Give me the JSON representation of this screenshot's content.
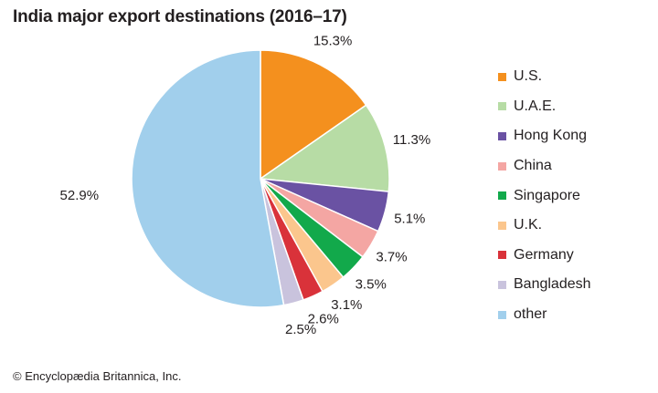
{
  "credit": "© Encyclopædia Britannica, Inc.",
  "chart_data": {
    "type": "pie",
    "title": "India major export destinations (2016–17)",
    "unit": "%",
    "start_angle_deg": 0,
    "direction": "clockwise",
    "legend_position": "right",
    "slices": [
      {
        "label": "U.S.",
        "value": 15.3,
        "display": "15.3%",
        "color": "#f4901e"
      },
      {
        "label": "U.A.E.",
        "value": 11.3,
        "display": "11.3%",
        "color": "#b7dca5"
      },
      {
        "label": "Hong Kong",
        "value": 5.1,
        "display": "5.1%",
        "color": "#6a52a3"
      },
      {
        "label": "China",
        "value": 3.7,
        "display": "3.7%",
        "color": "#f4a6a3"
      },
      {
        "label": "Singapore",
        "value": 3.5,
        "display": "3.5%",
        "color": "#12a94b"
      },
      {
        "label": "U.K.",
        "value": 3.1,
        "display": "3.1%",
        "color": "#fbc68d"
      },
      {
        "label": "Germany",
        "value": 2.6,
        "display": "2.6%",
        "color": "#d9323a"
      },
      {
        "label": "Bangladesh",
        "value": 2.5,
        "display": "2.5%",
        "color": "#c9c3dd"
      },
      {
        "label": "other",
        "value": 52.9,
        "display": "52.9%",
        "color": "#a1cfec"
      }
    ]
  }
}
